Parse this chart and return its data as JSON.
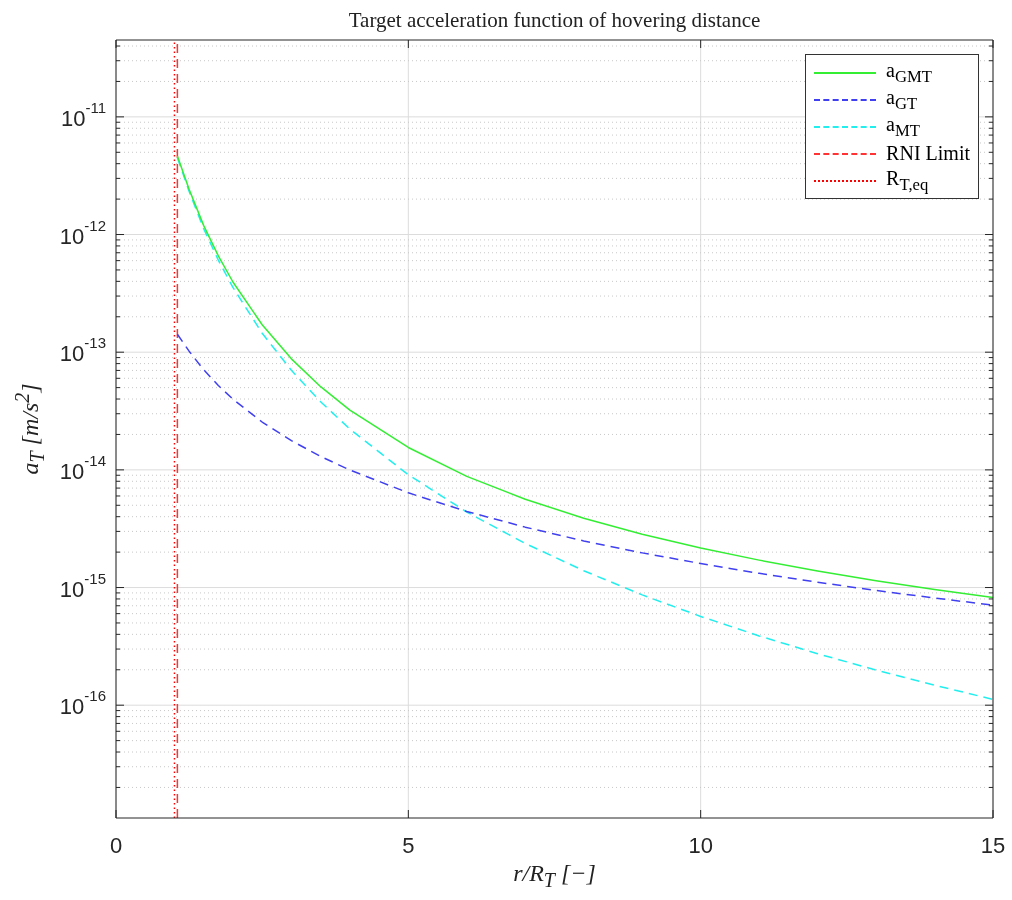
{
  "chart_data": {
    "type": "line",
    "title": "Target acceleration function of hovering distance",
    "xlabel": "r/R$_{T}$ [−]",
    "ylabel": "a$_{T}$ [m/s$^{2}$]",
    "log": "y",
    "grid": true,
    "legend": "top right",
    "marker": "none",
    "xlim": [
      0,
      15
    ],
    "xticks": [
      0,
      5,
      10,
      15
    ],
    "ylim": [
      1.1e-17,
      4.5e-11
    ],
    "yticks": [
      {
        "value": 2e-17,
        "label": null
      },
      {
        "value": 3e-17,
        "label": null
      },
      {
        "value": 4e-17,
        "label": null
      },
      {
        "value": 5e-17,
        "label": null
      },
      {
        "value": 6e-17,
        "label": null
      },
      {
        "value": 7e-17,
        "label": null
      },
      {
        "value": 8e-17,
        "label": null
      },
      {
        "value": 9e-17,
        "label": null
      },
      {
        "value": 1e-16,
        "label": "10$^{-16}$"
      },
      {
        "value": 2e-16,
        "label": null
      },
      {
        "value": 3e-16,
        "label": null
      },
      {
        "value": 4e-16,
        "label": null
      },
      {
        "value": 5e-16,
        "label": null
      },
      {
        "value": 6e-16,
        "label": null
      },
      {
        "value": 7e-16,
        "label": null
      },
      {
        "value": 8e-16,
        "label": null
      },
      {
        "value": 9e-16,
        "label": null
      },
      {
        "value": 1e-15,
        "label": "10$^{-15}$"
      },
      {
        "value": 2e-15,
        "label": null
      },
      {
        "value": 3e-15,
        "label": null
      },
      {
        "value": 4e-15,
        "label": null
      },
      {
        "value": 5e-15,
        "label": null
      },
      {
        "value": 6e-15,
        "label": null
      },
      {
        "value": 7e-15,
        "label": null
      },
      {
        "value": 8e-15,
        "label": null
      },
      {
        "value": 9e-15,
        "label": null
      },
      {
        "value": 1e-14,
        "label": "10$^{-14}$"
      },
      {
        "value": 2e-14,
        "label": null
      },
      {
        "value": 3e-14,
        "label": null
      },
      {
        "value": 4e-14,
        "label": null
      },
      {
        "value": 5e-14,
        "label": null
      },
      {
        "value": 6e-14,
        "label": null
      },
      {
        "value": 7e-14,
        "label": null
      },
      {
        "value": 8e-14,
        "label": null
      },
      {
        "value": 9e-14,
        "label": null
      },
      {
        "value": 1e-13,
        "label": "10$^{-13}$"
      },
      {
        "value": 2e-13,
        "label": null
      },
      {
        "value": 3e-13,
        "label": null
      },
      {
        "value": 4e-13,
        "label": null
      },
      {
        "value": 5e-13,
        "label": null
      },
      {
        "value": 6e-13,
        "label": null
      },
      {
        "value": 7e-13,
        "label": null
      },
      {
        "value": 8e-13,
        "label": null
      },
      {
        "value": 9e-13,
        "label": null
      },
      {
        "value": 1e-12,
        "label": "10$^{-12}$"
      },
      {
        "value": 2e-12,
        "label": null
      },
      {
        "value": 3e-12,
        "label": null
      },
      {
        "value": 4e-12,
        "label": null
      },
      {
        "value": 5e-12,
        "label": null
      },
      {
        "value": 6e-12,
        "label": null
      },
      {
        "value": 7e-12,
        "label": null
      },
      {
        "value": 8e-12,
        "label": null
      },
      {
        "value": 9e-12,
        "label": null
      },
      {
        "value": 1e-11,
        "label": "10$^{-11}$"
      },
      {
        "value": 2e-11,
        "label": null
      },
      {
        "value": 3e-11,
        "label": null
      },
      {
        "value": 4e-11,
        "label": null
      }
    ],
    "series": [
      {
        "name": "a$_{GMT}$",
        "color": "#33ee33",
        "line_style": "solid",
        "x": [
          1.05,
          1.25,
          1.5,
          1.75,
          2,
          2.5,
          3,
          3.5,
          4,
          5,
          6,
          7,
          8,
          9,
          10,
          11,
          12,
          13,
          14,
          15
        ],
        "values": [
          4.64e-12,
          2.43e-12,
          1.19e-12,
          6.58e-13,
          3.95e-13,
          1.71e-13,
          8.78e-14,
          5.09e-14,
          3.22e-14,
          1.55e-14,
          8.81e-15,
          5.63e-15,
          3.88e-15,
          2.84e-15,
          2.17e-15,
          1.71e-15,
          1.38e-15,
          1.14e-15,
          9.62e-16,
          8.21e-16
        ]
      },
      {
        "name": "a$_{GT}$",
        "color": "#4040f0",
        "line_style": "dashed",
        "x": [
          1.05,
          1.25,
          1.5,
          1.75,
          2,
          2.5,
          3,
          3.5,
          4,
          5,
          6,
          7,
          8,
          9,
          10,
          11,
          12,
          13,
          14,
          15
        ],
        "values": [
          1.42e-13,
          1.02e-13,
          7.09e-14,
          5.21e-14,
          3.99e-14,
          2.55e-14,
          1.77e-14,
          1.3e-14,
          9.98e-15,
          6.38e-15,
          4.43e-15,
          3.26e-15,
          2.49e-15,
          1.97e-15,
          1.6e-15,
          1.32e-15,
          1.11e-15,
          9.44e-16,
          8.14e-16,
          7.09e-16
        ]
      },
      {
        "name": "a$_{MT}$",
        "color": "#22eeee",
        "line_style": "dashed",
        "x": [
          1.05,
          1.25,
          1.5,
          1.75,
          2,
          2.5,
          3,
          3.5,
          4,
          5,
          6,
          7,
          8,
          9,
          10,
          11,
          12,
          13,
          14,
          15
        ],
        "values": [
          4.5e-12,
          2.33e-12,
          1.12e-12,
          6.06e-13,
          3.55e-13,
          1.45e-13,
          7.01e-14,
          3.79e-14,
          2.22e-14,
          9.09e-15,
          4.38e-15,
          2.37e-15,
          1.39e-15,
          8.66e-16,
          5.68e-16,
          3.88e-16,
          2.74e-16,
          1.99e-16,
          1.48e-16,
          1.12e-16
        ]
      },
      {
        "name": "RNI Limit",
        "color": "#ff3333",
        "line_style": "dashed",
        "x": [
          1.05,
          1.05
        ],
        "values": [
          1.1e-17,
          4.5e-11
        ]
      },
      {
        "name": "R$_{T,eq}$",
        "color": "#ff0000",
        "line_style": "dotted",
        "x": [
          1,
          1
        ],
        "values": [
          1.1e-17,
          4.5e-11
        ]
      }
    ]
  }
}
